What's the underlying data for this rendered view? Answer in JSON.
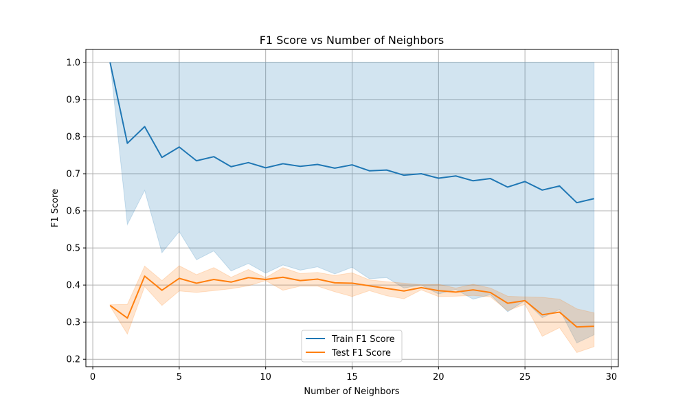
{
  "chart_data": {
    "type": "line",
    "title": "F1 Score vs Number of Neighbors",
    "xlabel": "Number of Neighbors",
    "ylabel": "F1 Score",
    "xlim": [
      -0.4,
      30.4
    ],
    "ylim": [
      0.18,
      1.035
    ],
    "xticks": [
      0,
      5,
      10,
      15,
      20,
      25,
      30
    ],
    "yticks": [
      0.2,
      0.3,
      0.4,
      0.5,
      0.6,
      0.7,
      0.8,
      0.9,
      1.0
    ],
    "xtick_labels": [
      "0",
      "5",
      "10",
      "15",
      "20",
      "25",
      "30"
    ],
    "ytick_labels": [
      "0.2",
      "0.3",
      "0.4",
      "0.5",
      "0.6",
      "0.7",
      "0.8",
      "0.9",
      "1.0"
    ],
    "grid": true,
    "legend_position": "bottom-center",
    "x": [
      1,
      2,
      3,
      4,
      5,
      6,
      7,
      8,
      9,
      10,
      11,
      12,
      13,
      14,
      15,
      16,
      17,
      18,
      19,
      20,
      21,
      22,
      23,
      24,
      25,
      26,
      27,
      28,
      29
    ],
    "series": [
      {
        "name": "Train F1 Score",
        "color": "#1f77b4",
        "values": [
          1.0,
          0.782,
          0.827,
          0.744,
          0.772,
          0.735,
          0.746,
          0.719,
          0.73,
          0.716,
          0.727,
          0.72,
          0.725,
          0.715,
          0.724,
          0.708,
          0.71,
          0.696,
          0.7,
          0.688,
          0.694,
          0.681,
          0.687,
          0.664,
          0.679,
          0.656,
          0.667,
          0.622,
          0.633
        ],
        "lower": [
          1.0,
          0.563,
          0.655,
          0.487,
          0.544,
          0.468,
          0.492,
          0.438,
          0.458,
          0.432,
          0.454,
          0.44,
          0.449,
          0.43,
          0.448,
          0.417,
          0.42,
          0.392,
          0.4,
          0.376,
          0.388,
          0.362,
          0.374,
          0.328,
          0.358,
          0.312,
          0.334,
          0.244,
          0.266
        ],
        "upper": [
          1.0,
          1.0,
          1.0,
          1.0,
          1.0,
          1.0,
          1.0,
          1.0,
          1.0,
          1.0,
          1.0,
          1.0,
          1.0,
          1.0,
          1.0,
          1.0,
          1.0,
          1.0,
          1.0,
          1.0,
          1.0,
          1.0,
          1.0,
          1.0,
          1.0,
          1.0,
          1.0,
          1.0,
          1.0
        ]
      },
      {
        "name": "Test F1 Score",
        "color": "#ff7f0e",
        "values": [
          0.345,
          0.311,
          0.424,
          0.386,
          0.418,
          0.405,
          0.415,
          0.408,
          0.42,
          0.415,
          0.421,
          0.412,
          0.416,
          0.406,
          0.405,
          0.398,
          0.391,
          0.384,
          0.393,
          0.385,
          0.381,
          0.387,
          0.38,
          0.351,
          0.358,
          0.32,
          0.327,
          0.287,
          0.289
        ],
        "lower": [
          0.343,
          0.268,
          0.396,
          0.345,
          0.384,
          0.38,
          0.385,
          0.39,
          0.398,
          0.412,
          0.386,
          0.397,
          0.397,
          0.382,
          0.369,
          0.385,
          0.371,
          0.363,
          0.387,
          0.369,
          0.37,
          0.372,
          0.368,
          0.331,
          0.348,
          0.262,
          0.285,
          0.218,
          0.234
        ],
        "upper": [
          0.347,
          0.348,
          0.451,
          0.412,
          0.452,
          0.428,
          0.447,
          0.421,
          0.442,
          0.42,
          0.447,
          0.431,
          0.434,
          0.426,
          0.433,
          0.414,
          0.409,
          0.405,
          0.401,
          0.402,
          0.392,
          0.402,
          0.392,
          0.37,
          0.368,
          0.367,
          0.362,
          0.336,
          0.325
        ]
      }
    ]
  }
}
